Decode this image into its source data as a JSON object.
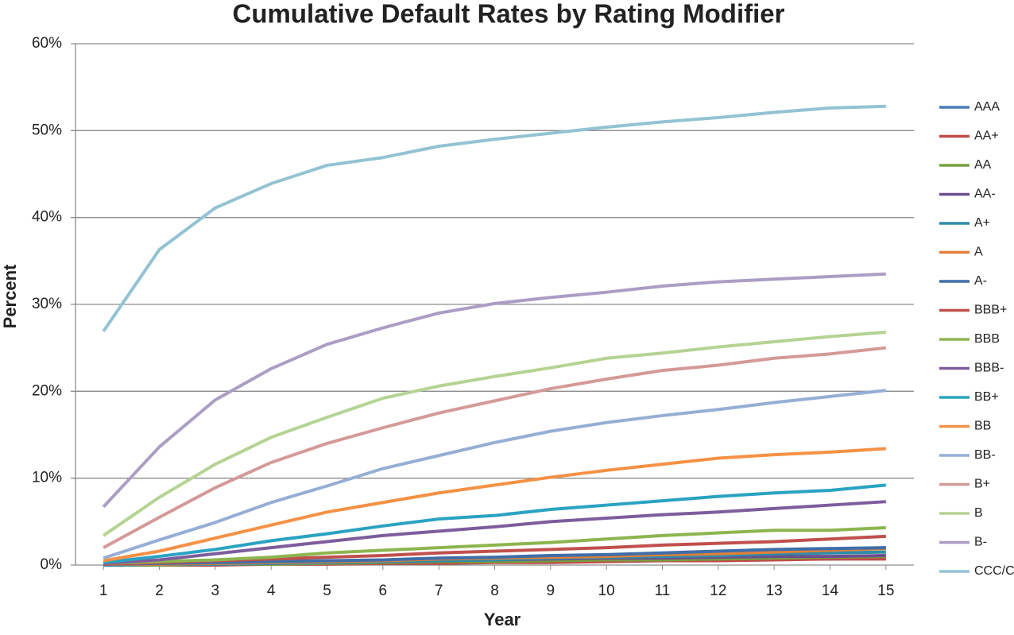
{
  "chart_data": {
    "type": "line",
    "title": "Cumulative Default Rates by Rating Modifier",
    "x_label": "Year",
    "y_label": "Percent",
    "x": [
      1,
      2,
      3,
      4,
      5,
      6,
      7,
      8,
      9,
      10,
      11,
      12,
      13,
      14,
      15
    ],
    "xlim": [
      0.5,
      15.5
    ],
    "xticks": [
      1,
      2,
      3,
      4,
      5,
      6,
      7,
      8,
      9,
      10,
      11,
      12,
      13,
      14,
      15
    ],
    "ylim": [
      0,
      60
    ],
    "yticks": [
      {
        "value": 0,
        "label": "0%"
      },
      {
        "value": 10,
        "label": "10%"
      },
      {
        "value": 20,
        "label": "20%"
      },
      {
        "value": 30,
        "label": "30%"
      },
      {
        "value": 40,
        "label": "40%"
      },
      {
        "value": 50,
        "label": "50%"
      },
      {
        "value": 60,
        "label": "60%"
      }
    ],
    "grid": true,
    "legend": "right",
    "series": [
      {
        "name": "AAA",
        "color": "#4a7ebb",
        "values": [
          0,
          0,
          0.1,
          0.2,
          0.3,
          0.4,
          0.4,
          0.5,
          0.5,
          0.6,
          0.6,
          0.7,
          0.7,
          0.7,
          0.8
        ]
      },
      {
        "name": "AA+",
        "color": "#be4b48",
        "values": [
          0,
          0,
          0,
          0.1,
          0.1,
          0.2,
          0.2,
          0.3,
          0.3,
          0.4,
          0.5,
          0.5,
          0.6,
          0.7,
          0.7
        ]
      },
      {
        "name": "AA",
        "color": "#77a03e",
        "values": [
          0,
          0,
          0.1,
          0.1,
          0.2,
          0.3,
          0.4,
          0.4,
          0.5,
          0.6,
          0.6,
          0.7,
          0.8,
          0.9,
          1.0
        ]
      },
      {
        "name": "AA-",
        "color": "#6b4f8e",
        "values": [
          0,
          0.1,
          0.1,
          0.2,
          0.3,
          0.4,
          0.5,
          0.6,
          0.7,
          0.8,
          0.8,
          0.9,
          1.0,
          1.0,
          1.1
        ]
      },
      {
        "name": "A+",
        "color": "#2f8ca8",
        "values": [
          0,
          0.1,
          0.1,
          0.2,
          0.3,
          0.4,
          0.5,
          0.6,
          0.8,
          0.9,
          1.0,
          1.1,
          1.3,
          1.4,
          1.5
        ]
      },
      {
        "name": "A",
        "color": "#e0803a",
        "values": [
          0.1,
          0.1,
          0.2,
          0.3,
          0.4,
          0.5,
          0.7,
          0.8,
          0.9,
          1.0,
          1.2,
          1.3,
          1.5,
          1.7,
          1.9
        ]
      },
      {
        "name": "A-",
        "color": "#3f6ea8",
        "values": [
          0.1,
          0.2,
          0.3,
          0.4,
          0.5,
          0.6,
          0.8,
          0.9,
          1.1,
          1.2,
          1.4,
          1.6,
          1.8,
          1.9,
          2.0
        ]
      },
      {
        "name": "BBB+",
        "color": "#c0504d",
        "values": [
          0.1,
          0.3,
          0.5,
          0.7,
          0.9,
          1.1,
          1.4,
          1.6,
          1.8,
          2.0,
          2.3,
          2.5,
          2.7,
          3.0,
          3.3
        ]
      },
      {
        "name": "BBB",
        "color": "#8db54f",
        "values": [
          0.2,
          0.4,
          0.6,
          0.9,
          1.4,
          1.7,
          2.0,
          2.3,
          2.6,
          3.0,
          3.4,
          3.7,
          4.0,
          4.0,
          4.3
        ]
      },
      {
        "name": "BBB-",
        "color": "#7d5d9c",
        "values": [
          0.2,
          0.6,
          1.3,
          2.0,
          2.7,
          3.4,
          3.9,
          4.4,
          5.0,
          5.4,
          5.8,
          6.1,
          6.5,
          6.9,
          7.3
        ]
      },
      {
        "name": "BB+",
        "color": "#2aa3c2",
        "values": [
          0.3,
          1.0,
          1.8,
          2.8,
          3.6,
          4.5,
          5.3,
          5.7,
          6.4,
          6.9,
          7.4,
          7.9,
          8.3,
          8.6,
          9.2
        ]
      },
      {
        "name": "BB",
        "color": "#f59145",
        "values": [
          0.5,
          1.6,
          3.1,
          4.6,
          6.1,
          7.2,
          8.3,
          9.2,
          10.1,
          10.9,
          11.6,
          12.3,
          12.7,
          13.0,
          13.4
        ]
      },
      {
        "name": "BB-",
        "color": "#95aed4",
        "values": [
          0.8,
          2.9,
          4.9,
          7.2,
          9.1,
          11.1,
          12.6,
          14.1,
          15.4,
          16.4,
          17.2,
          17.9,
          18.7,
          19.4,
          20.1
        ]
      },
      {
        "name": "B+",
        "color": "#d49a98",
        "values": [
          2.0,
          5.5,
          8.9,
          11.8,
          14.0,
          15.8,
          17.5,
          18.9,
          20.3,
          21.4,
          22.4,
          23.0,
          23.8,
          24.3,
          25.0
        ]
      },
      {
        "name": "B",
        "color": "#b5d393",
        "values": [
          3.4,
          7.8,
          11.6,
          14.7,
          17.0,
          19.2,
          20.6,
          21.7,
          22.7,
          23.8,
          24.4,
          25.1,
          25.7,
          26.3,
          26.8
        ]
      },
      {
        "name": "B-",
        "color": "#ab9ec4",
        "values": [
          6.7,
          13.6,
          19.0,
          22.6,
          25.4,
          27.3,
          29.0,
          30.1,
          30.8,
          31.4,
          32.1,
          32.6,
          32.9,
          33.2,
          33.5
        ]
      },
      {
        "name": "CCC/C",
        "color": "#93c3d3",
        "values": [
          26.9,
          36.3,
          41.1,
          43.9,
          46.0,
          46.9,
          48.2,
          49.0,
          49.7,
          50.4,
          51.0,
          51.5,
          52.1,
          52.6,
          52.8
        ]
      }
    ]
  }
}
